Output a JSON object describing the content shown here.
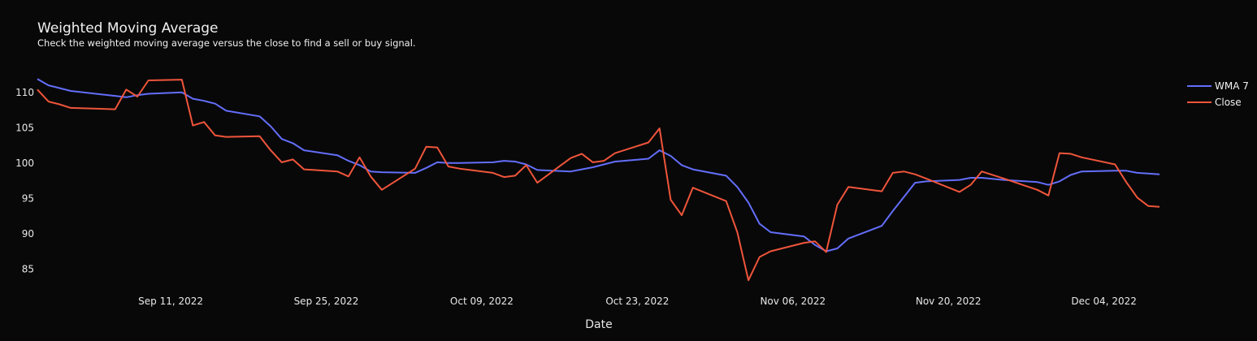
{
  "chart_data": {
    "type": "line",
    "title": "Weighted Moving Average",
    "subtitle": "Check the weighted moving average versus the close to find a sell or buy signal.",
    "xlabel": "Date",
    "ylabel": "",
    "x_ticks": [
      "Sep 11, 2022",
      "Sep 25, 2022",
      "Oct 09, 2022",
      "Oct 23, 2022",
      "Nov 06, 2022",
      "Nov 20, 2022",
      "Dec 04, 2022"
    ],
    "y_ticks": [
      85,
      90,
      95,
      100,
      105,
      110
    ],
    "xlim": [
      "2022-08-30",
      "2022-12-09"
    ],
    "ylim": [
      82.5,
      112.5
    ],
    "grid": false,
    "legend_position": "top-right",
    "series": [
      {
        "name": "WMA 7",
        "color": "#636efa",
        "x": [
          "2022-08-30",
          "2022-08-31",
          "2022-09-01",
          "2022-09-02",
          "2022-09-06",
          "2022-09-07",
          "2022-09-08",
          "2022-09-09",
          "2022-09-12",
          "2022-09-13",
          "2022-09-14",
          "2022-09-15",
          "2022-09-16",
          "2022-09-19",
          "2022-09-20",
          "2022-09-21",
          "2022-09-22",
          "2022-09-23",
          "2022-09-26",
          "2022-09-27",
          "2022-09-28",
          "2022-09-29",
          "2022-09-30",
          "2022-10-03",
          "2022-10-04",
          "2022-10-05",
          "2022-10-06",
          "2022-10-07",
          "2022-10-10",
          "2022-10-11",
          "2022-10-12",
          "2022-10-13",
          "2022-10-14",
          "2022-10-17",
          "2022-10-18",
          "2022-10-19",
          "2022-10-20",
          "2022-10-21",
          "2022-10-24",
          "2022-10-25",
          "2022-10-26",
          "2022-10-27",
          "2022-10-28",
          "2022-10-31",
          "2022-11-01",
          "2022-11-02",
          "2022-11-03",
          "2022-11-04",
          "2022-11-07",
          "2022-11-08",
          "2022-11-09",
          "2022-11-10",
          "2022-11-11",
          "2022-11-14",
          "2022-11-15",
          "2022-11-16",
          "2022-11-17",
          "2022-11-18",
          "2022-11-21",
          "2022-11-22",
          "2022-11-23",
          "2022-11-25",
          "2022-11-28",
          "2022-11-29",
          "2022-11-30",
          "2022-12-01",
          "2022-12-02",
          "2022-12-05",
          "2022-12-06",
          "2022-12-07",
          "2022-12-08",
          "2022-12-09"
        ],
        "values": [
          111.9,
          111.0,
          110.6,
          110.2,
          109.5,
          109.3,
          109.6,
          109.8,
          110.0,
          109.1,
          108.8,
          108.4,
          107.4,
          106.6,
          105.2,
          103.4,
          102.8,
          101.8,
          101.1,
          100.3,
          99.7,
          98.8,
          98.7,
          98.6,
          99.3,
          100.1,
          100.0,
          100.0,
          100.1,
          100.3,
          100.2,
          99.8,
          99.0,
          98.8,
          99.1,
          99.4,
          99.8,
          100.2,
          100.6,
          101.8,
          101.0,
          99.7,
          99.1,
          98.2,
          96.6,
          94.4,
          91.4,
          90.2,
          89.6,
          88.4,
          87.5,
          87.9,
          89.3,
          91.1,
          93.2,
          95.2,
          97.2,
          97.4,
          97.6,
          97.9,
          97.9,
          97.6,
          97.3,
          96.9,
          97.4,
          98.3,
          98.8,
          98.9,
          98.9,
          98.6,
          98.5,
          98.4
        ]
      },
      {
        "name": "Close",
        "color": "#ef553b",
        "x": [
          "2022-08-30",
          "2022-08-31",
          "2022-09-01",
          "2022-09-02",
          "2022-09-06",
          "2022-09-07",
          "2022-09-08",
          "2022-09-09",
          "2022-09-12",
          "2022-09-13",
          "2022-09-14",
          "2022-09-15",
          "2022-09-16",
          "2022-09-19",
          "2022-09-20",
          "2022-09-21",
          "2022-09-22",
          "2022-09-23",
          "2022-09-26",
          "2022-09-27",
          "2022-09-28",
          "2022-09-29",
          "2022-09-30",
          "2022-10-03",
          "2022-10-04",
          "2022-10-05",
          "2022-10-06",
          "2022-10-07",
          "2022-10-10",
          "2022-10-11",
          "2022-10-12",
          "2022-10-13",
          "2022-10-14",
          "2022-10-17",
          "2022-10-18",
          "2022-10-19",
          "2022-10-20",
          "2022-10-21",
          "2022-10-24",
          "2022-10-25",
          "2022-10-26",
          "2022-10-27",
          "2022-10-28",
          "2022-10-31",
          "2022-11-01",
          "2022-11-02",
          "2022-11-03",
          "2022-11-04",
          "2022-11-07",
          "2022-11-08",
          "2022-11-09",
          "2022-11-10",
          "2022-11-11",
          "2022-11-14",
          "2022-11-15",
          "2022-11-16",
          "2022-11-17",
          "2022-11-18",
          "2022-11-21",
          "2022-11-22",
          "2022-11-23",
          "2022-11-25",
          "2022-11-28",
          "2022-11-29",
          "2022-11-30",
          "2022-12-01",
          "2022-12-02",
          "2022-12-05",
          "2022-12-06",
          "2022-12-07",
          "2022-12-08",
          "2022-12-09"
        ],
        "values": [
          110.4,
          108.7,
          108.3,
          107.8,
          107.6,
          110.4,
          109.4,
          111.7,
          111.8,
          105.3,
          105.8,
          103.9,
          103.7,
          103.8,
          101.8,
          100.1,
          100.5,
          99.1,
          98.8,
          98.1,
          100.8,
          98.1,
          96.2,
          99.2,
          102.3,
          102.2,
          99.5,
          99.2,
          98.6,
          98.0,
          98.2,
          99.7,
          97.2,
          100.7,
          101.3,
          100.1,
          100.3,
          101.4,
          102.9,
          104.9,
          94.8,
          92.6,
          96.5,
          94.6,
          90.2,
          83.4,
          86.7,
          87.5,
          88.7,
          88.9,
          87.4,
          94.1,
          96.6,
          96.0,
          98.6,
          98.8,
          98.4,
          97.8,
          95.9,
          96.9,
          98.8,
          97.8,
          96.2,
          95.4,
          101.4,
          101.3,
          100.8,
          99.8,
          97.3,
          95.1,
          93.9,
          93.8
        ]
      }
    ]
  }
}
